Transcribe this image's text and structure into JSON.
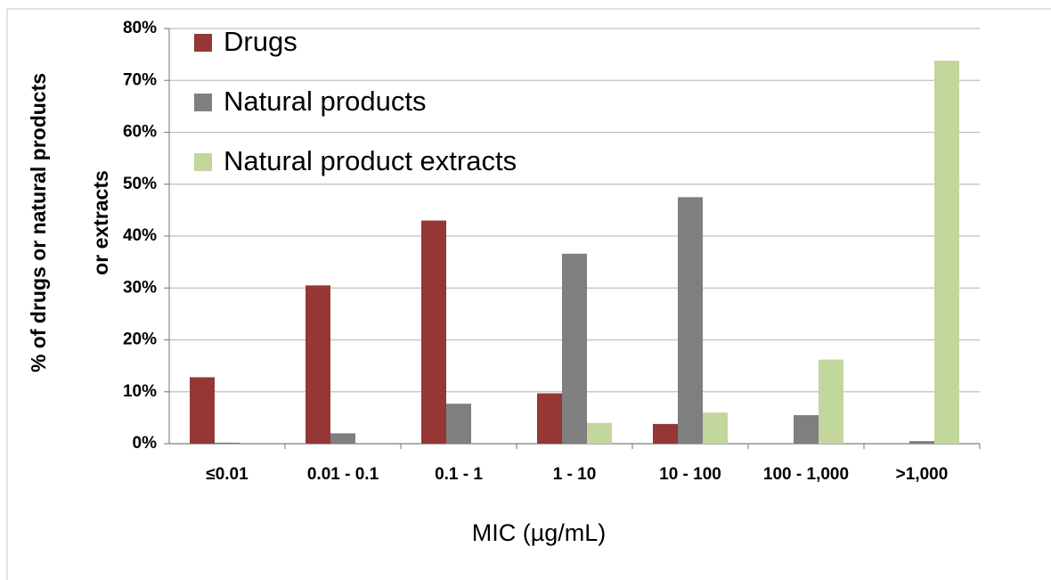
{
  "chart_data": {
    "type": "bar",
    "y_label": [
      "% of drugs or natural products",
      "or extracts"
    ],
    "x_label": "MIC (µg/mL)",
    "categories": [
      "≤0.01",
      "0.01 - 0.1",
      "0.1 - 1",
      "1 - 10",
      "10 - 100",
      "100 - 1,000",
      ">1,000"
    ],
    "series": [
      {
        "name": "Drugs",
        "color": "#953735",
        "values": [
          12.8,
          30.5,
          43.0,
          9.7,
          3.8,
          0,
          0
        ]
      },
      {
        "name": "Natural products",
        "color": "#7f7f7f",
        "values": [
          0.2,
          2.0,
          7.7,
          36.6,
          47.5,
          5.5,
          0.5
        ]
      },
      {
        "name": "Natural product extracts",
        "color": "#c3d69b",
        "values": [
          0,
          0,
          0,
          4.0,
          6.0,
          16.2,
          73.8
        ]
      }
    ],
    "ylim": [
      0,
      80
    ],
    "yticks": [
      {
        "value": 0,
        "label": "0%"
      },
      {
        "value": 10,
        "label": "10%"
      },
      {
        "value": 20,
        "label": "20%"
      },
      {
        "value": 30,
        "label": "30%"
      },
      {
        "value": 40,
        "label": "40%"
      },
      {
        "value": 50,
        "label": "50%"
      },
      {
        "value": 60,
        "label": "60%"
      },
      {
        "value": 70,
        "label": "70%"
      },
      {
        "value": 80,
        "label": "80%"
      }
    ],
    "grid": true,
    "legend": "top-left"
  }
}
